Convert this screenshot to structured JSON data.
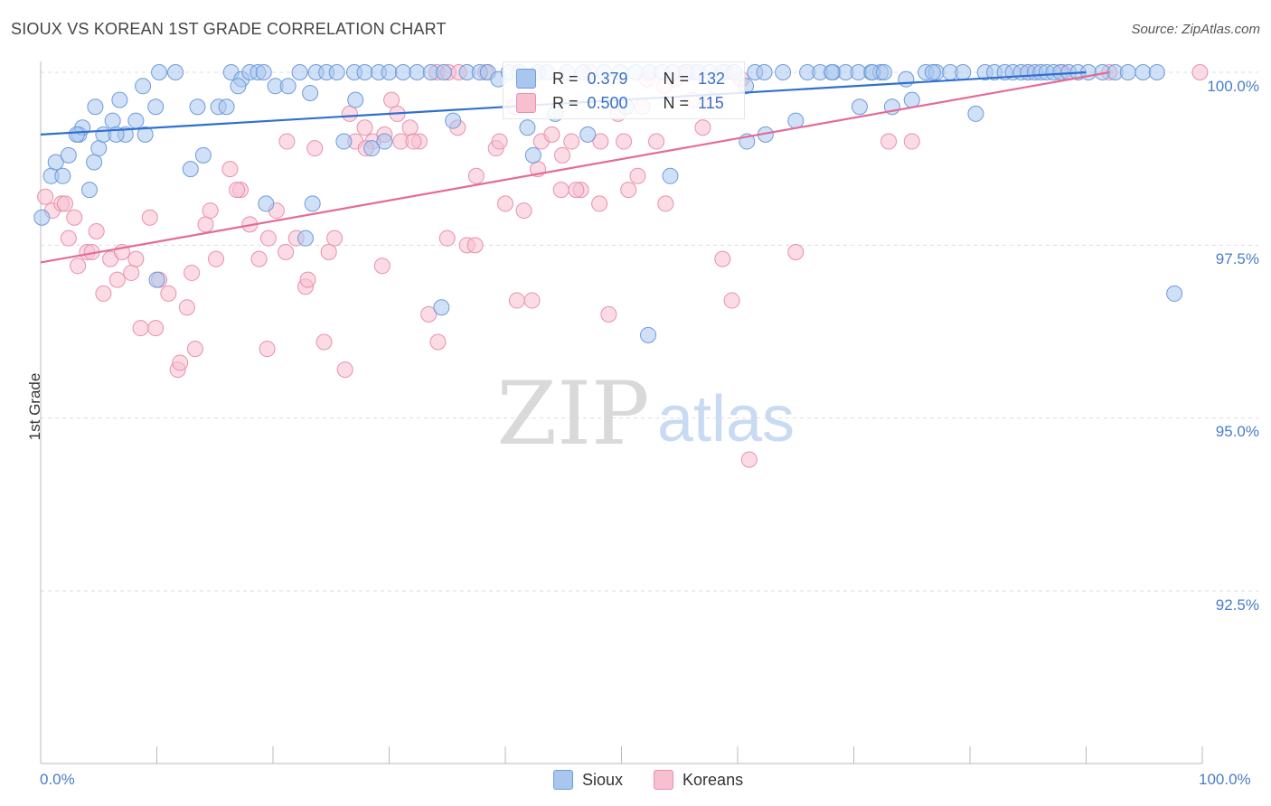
{
  "title": "SIOUX VS KOREAN 1ST GRADE CORRELATION CHART",
  "source": "Source: ZipAtlas.com",
  "watermark": {
    "zip": "ZIP",
    "atlas": "atlas"
  },
  "colors": {
    "sioux_fill": "#a9c6ef",
    "sioux_stroke": "#6e9bdc",
    "sioux_line": "#2f6fd1",
    "korean_fill": "#f7bfd0",
    "korean_stroke": "#ea8fad",
    "korean_line": "#e46b96",
    "tick_text": "#4a7cc9",
    "grid": "#dddddd"
  },
  "stats": {
    "sioux": {
      "r_label": "R =",
      "r_value": "0.379",
      "n_label": "N =",
      "n_value": "132"
    },
    "koreans": {
      "r_label": "R =",
      "r_value": "0.500",
      "n_label": "N =",
      "n_value": "115"
    }
  },
  "legend": {
    "sioux": "Sioux",
    "koreans": "Koreans"
  },
  "chart_data": {
    "type": "scatter",
    "title": "SIOUX VS KOREAN 1ST GRADE CORRELATION CHART",
    "xlabel": "",
    "ylabel": "1st Grade",
    "xlim": [
      0,
      100
    ],
    "ylim": [
      90.5,
      100.35
    ],
    "x_tick_labels": [
      "0.0%",
      "100.0%"
    ],
    "y_ticks": [
      92.5,
      95.0,
      97.5,
      100.0
    ],
    "y_tick_labels": [
      "92.5%",
      "95.0%",
      "97.5%",
      "100.0%"
    ],
    "grid": "horizontal dashed",
    "legend_position": "bottom-center",
    "series": [
      {
        "name": "Sioux",
        "trend": [
          [
            0,
            99.1
          ],
          [
            90,
            100.0
          ]
        ],
        "points": [
          [
            0.1,
            97.9
          ],
          [
            0.9,
            98.5
          ],
          [
            1.3,
            98.7
          ],
          [
            1.9,
            98.5
          ],
          [
            2.4,
            98.8
          ],
          [
            3.3,
            99.1
          ],
          [
            3.6,
            99.2
          ],
          [
            4.2,
            98.3
          ],
          [
            4.6,
            98.7
          ],
          [
            5.0,
            98.9
          ],
          [
            5.4,
            99.1
          ],
          [
            4.7,
            99.5
          ],
          [
            6.2,
            99.3
          ],
          [
            6.8,
            99.6
          ],
          [
            7.3,
            99.1
          ],
          [
            8.2,
            99.3
          ],
          [
            8.8,
            99.8
          ],
          [
            9.0,
            99.1
          ],
          [
            9.9,
            99.5
          ],
          [
            10.2,
            100.0
          ],
          [
            11.6,
            100.0
          ],
          [
            12.9,
            98.6
          ],
          [
            13.5,
            99.5
          ],
          [
            14.0,
            98.8
          ],
          [
            15.3,
            99.5
          ],
          [
            16.4,
            100.0
          ],
          [
            17.3,
            99.9
          ],
          [
            18.0,
            100.0
          ],
          [
            18.7,
            100.0
          ],
          [
            19.2,
            100.0
          ],
          [
            20.2,
            99.8
          ],
          [
            21.3,
            99.8
          ],
          [
            22.3,
            100.0
          ],
          [
            23.2,
            99.7
          ],
          [
            23.7,
            100.0
          ],
          [
            24.6,
            100.0
          ],
          [
            25.5,
            100.0
          ],
          [
            26.1,
            99.0
          ],
          [
            27.0,
            100.0
          ],
          [
            27.9,
            100.0
          ],
          [
            28.5,
            98.9
          ],
          [
            29.1,
            100.0
          ],
          [
            30.0,
            100.0
          ],
          [
            31.2,
            100.0
          ],
          [
            32.4,
            100.0
          ],
          [
            33.6,
            100.0
          ],
          [
            34.7,
            100.0
          ],
          [
            35.5,
            99.3
          ],
          [
            36.7,
            100.0
          ],
          [
            37.8,
            100.0
          ],
          [
            38.5,
            100.0
          ],
          [
            39.4,
            99.9
          ],
          [
            40.3,
            100.0
          ],
          [
            41.2,
            100.0
          ],
          [
            41.9,
            99.2
          ],
          [
            42.4,
            98.8
          ],
          [
            42.8,
            100.0
          ],
          [
            43.6,
            100.0
          ],
          [
            44.3,
            99.4
          ],
          [
            45.3,
            100.0
          ],
          [
            46.7,
            100.0
          ],
          [
            47.1,
            99.1
          ],
          [
            48.5,
            100.0
          ],
          [
            49.9,
            100.0
          ],
          [
            51.2,
            100.0
          ],
          [
            52.4,
            100.0
          ],
          [
            53.5,
            100.0
          ],
          [
            54.4,
            100.0
          ],
          [
            55.6,
            100.0
          ],
          [
            56.6,
            100.0
          ],
          [
            57.6,
            100.0
          ],
          [
            58.7,
            100.0
          ],
          [
            59.7,
            100.0
          ],
          [
            60.8,
            99.0
          ],
          [
            61.5,
            100.0
          ],
          [
            62.3,
            100.0
          ],
          [
            63.9,
            100.0
          ],
          [
            65.0,
            99.3
          ],
          [
            66.0,
            100.0
          ],
          [
            67.1,
            100.0
          ],
          [
            68.2,
            100.0
          ],
          [
            69.3,
            100.0
          ],
          [
            70.5,
            99.5
          ],
          [
            71.5,
            100.0
          ],
          [
            72.3,
            100.0
          ],
          [
            73.3,
            99.5
          ],
          [
            74.5,
            99.9
          ],
          [
            75.0,
            99.6
          ],
          [
            76.2,
            100.0
          ],
          [
            77.1,
            100.0
          ],
          [
            78.3,
            100.0
          ],
          [
            79.4,
            100.0
          ],
          [
            80.5,
            99.4
          ],
          [
            81.3,
            100.0
          ],
          [
            82.1,
            100.0
          ],
          [
            83.0,
            100.0
          ],
          [
            83.7,
            100.0
          ],
          [
            84.4,
            100.0
          ],
          [
            85.0,
            100.0
          ],
          [
            85.6,
            100.0
          ],
          [
            86.1,
            100.0
          ],
          [
            86.6,
            100.0
          ],
          [
            87.2,
            100.0
          ],
          [
            87.8,
            100.0
          ],
          [
            88.5,
            100.0
          ],
          [
            89.3,
            100.0
          ],
          [
            90.2,
            100.0
          ],
          [
            91.4,
            100.0
          ],
          [
            92.5,
            100.0
          ],
          [
            93.6,
            100.0
          ],
          [
            94.9,
            100.0
          ],
          [
            96.1,
            100.0
          ],
          [
            97.6,
            96.8
          ],
          [
            3.1,
            99.1
          ],
          [
            6.5,
            99.1
          ],
          [
            10.0,
            97.0
          ],
          [
            16.0,
            99.5
          ],
          [
            17.0,
            99.8
          ],
          [
            19.4,
            98.1
          ],
          [
            22.8,
            97.6
          ],
          [
            23.4,
            98.1
          ],
          [
            27.1,
            99.6
          ],
          [
            29.6,
            99.0
          ],
          [
            34.5,
            96.6
          ],
          [
            50.4,
            99.5
          ],
          [
            52.3,
            96.2
          ],
          [
            54.2,
            98.5
          ],
          [
            60.7,
            99.8
          ],
          [
            62.4,
            99.1
          ],
          [
            68.1,
            100.0
          ],
          [
            70.4,
            100.0
          ],
          [
            71.6,
            100.0
          ],
          [
            72.6,
            100.0
          ],
          [
            76.8,
            100.0
          ]
        ]
      },
      {
        "name": "Koreans",
        "trend": [
          [
            0,
            97.25
          ],
          [
            92,
            100.0
          ]
        ],
        "points": [
          [
            0.4,
            98.2
          ],
          [
            1.0,
            98.0
          ],
          [
            1.8,
            98.1
          ],
          [
            2.4,
            97.6
          ],
          [
            2.9,
            97.9
          ],
          [
            3.2,
            97.2
          ],
          [
            4.0,
            97.4
          ],
          [
            4.8,
            97.7
          ],
          [
            5.4,
            96.8
          ],
          [
            6.0,
            97.3
          ],
          [
            6.6,
            97.0
          ],
          [
            7.0,
            97.4
          ],
          [
            7.8,
            97.1
          ],
          [
            8.6,
            96.3
          ],
          [
            9.4,
            97.9
          ],
          [
            10.2,
            97.0
          ],
          [
            11.0,
            96.8
          ],
          [
            11.8,
            95.7
          ],
          [
            12.6,
            96.6
          ],
          [
            13.3,
            96.0
          ],
          [
            14.2,
            97.8
          ],
          [
            15.1,
            97.3
          ],
          [
            16.3,
            98.6
          ],
          [
            17.2,
            98.3
          ],
          [
            18.0,
            97.8
          ],
          [
            18.8,
            97.3
          ],
          [
            19.5,
            96.0
          ],
          [
            20.3,
            98.0
          ],
          [
            21.1,
            97.4
          ],
          [
            22.0,
            97.6
          ],
          [
            22.8,
            96.9
          ],
          [
            23.6,
            98.9
          ],
          [
            24.4,
            96.1
          ],
          [
            25.3,
            97.6
          ],
          [
            26.2,
            95.7
          ],
          [
            27.1,
            99.0
          ],
          [
            27.9,
            99.2
          ],
          [
            28.6,
            99.0
          ],
          [
            29.4,
            97.2
          ],
          [
            30.2,
            99.6
          ],
          [
            31.0,
            99.0
          ],
          [
            31.8,
            99.2
          ],
          [
            32.6,
            99.0
          ],
          [
            33.4,
            96.5
          ],
          [
            34.2,
            96.1
          ],
          [
            35.0,
            97.6
          ],
          [
            35.9,
            99.2
          ],
          [
            36.7,
            97.5
          ],
          [
            37.5,
            98.5
          ],
          [
            38.3,
            100.0
          ],
          [
            39.2,
            98.9
          ],
          [
            40.0,
            98.1
          ],
          [
            40.8,
            99.5
          ],
          [
            41.6,
            98.0
          ],
          [
            42.3,
            96.7
          ],
          [
            43.1,
            99.0
          ],
          [
            44.0,
            99.1
          ],
          [
            44.9,
            98.8
          ],
          [
            45.7,
            99.0
          ],
          [
            46.5,
            98.3
          ],
          [
            47.3,
            100.0
          ],
          [
            48.1,
            98.1
          ],
          [
            48.9,
            96.5
          ],
          [
            49.7,
            99.4
          ],
          [
            50.6,
            98.3
          ],
          [
            51.4,
            98.5
          ],
          [
            52.2,
            99.9
          ],
          [
            53.0,
            99.0
          ],
          [
            53.8,
            98.1
          ],
          [
            54.6,
            99.9
          ],
          [
            55.4,
            100.0
          ],
          [
            56.2,
            100.0
          ],
          [
            57.0,
            99.2
          ],
          [
            57.8,
            99.6
          ],
          [
            58.7,
            97.3
          ],
          [
            59.5,
            96.7
          ],
          [
            60.3,
            99.9
          ],
          [
            61.0,
            94.4
          ],
          [
            2.1,
            98.1
          ],
          [
            4.4,
            97.4
          ],
          [
            8.2,
            97.3
          ],
          [
            9.9,
            96.3
          ],
          [
            12.0,
            95.8
          ],
          [
            13.0,
            97.1
          ],
          [
            14.6,
            98.0
          ],
          [
            16.9,
            98.3
          ],
          [
            19.6,
            97.6
          ],
          [
            21.2,
            99.0
          ],
          [
            23.0,
            97.0
          ],
          [
            24.8,
            97.4
          ],
          [
            26.6,
            99.4
          ],
          [
            28.0,
            98.9
          ],
          [
            29.6,
            99.1
          ],
          [
            30.7,
            99.4
          ],
          [
            32.1,
            99.0
          ],
          [
            34.1,
            100.0
          ],
          [
            35.1,
            100.0
          ],
          [
            36.0,
            100.0
          ],
          [
            37.4,
            97.5
          ],
          [
            39.5,
            99.0
          ],
          [
            41.0,
            96.7
          ],
          [
            42.8,
            98.6
          ],
          [
            44.8,
            98.3
          ],
          [
            46.1,
            98.3
          ],
          [
            48.2,
            99.0
          ],
          [
            50.2,
            99.0
          ],
          [
            51.8,
            99.5
          ],
          [
            53.7,
            99.8
          ],
          [
            56.1,
            99.6
          ],
          [
            59.0,
            100.0
          ],
          [
            65.0,
            97.4
          ],
          [
            73.0,
            99.0
          ],
          [
            75.0,
            99.0
          ],
          [
            85.0,
            100.0
          ],
          [
            88.0,
            100.0
          ],
          [
            92.0,
            100.0
          ],
          [
            99.8,
            100.0
          ]
        ]
      }
    ]
  }
}
